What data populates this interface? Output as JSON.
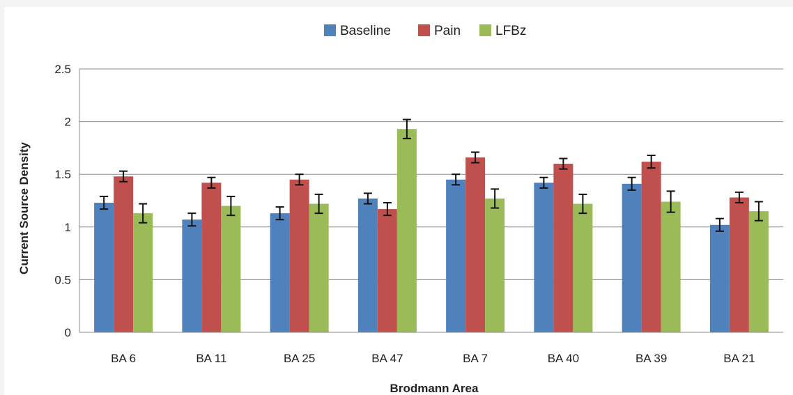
{
  "chart_data": {
    "type": "bar",
    "xlabel": "Brodmann Area",
    "ylabel": "Current Source Density",
    "ylim": [
      0,
      2.5
    ],
    "yticks": [
      "0",
      "0.5",
      "1",
      "1.5",
      "2",
      "2.5"
    ],
    "grid": true,
    "legend_position": "top-center",
    "categories": [
      "BA 6",
      "BA 11",
      "BA 25",
      "BA 47",
      "BA 7",
      "BA 40",
      "BA 39",
      "BA 21"
    ],
    "series": [
      {
        "name": "Baseline",
        "color": "#4f81bd",
        "values": [
          1.23,
          1.07,
          1.13,
          1.27,
          1.45,
          1.42,
          1.41,
          1.02
        ],
        "errors": [
          0.06,
          0.06,
          0.06,
          0.05,
          0.05,
          0.05,
          0.06,
          0.06
        ]
      },
      {
        "name": "Pain",
        "color": "#c0504d",
        "values": [
          1.48,
          1.42,
          1.45,
          1.17,
          1.66,
          1.6,
          1.62,
          1.28
        ],
        "errors": [
          0.05,
          0.05,
          0.05,
          0.06,
          0.05,
          0.05,
          0.06,
          0.05
        ]
      },
      {
        "name": "LFBz",
        "color": "#9bbb59",
        "values": [
          1.13,
          1.2,
          1.22,
          1.93,
          1.27,
          1.22,
          1.24,
          1.15
        ],
        "errors": [
          0.09,
          0.09,
          0.09,
          0.09,
          0.09,
          0.09,
          0.1,
          0.09
        ]
      }
    ]
  }
}
